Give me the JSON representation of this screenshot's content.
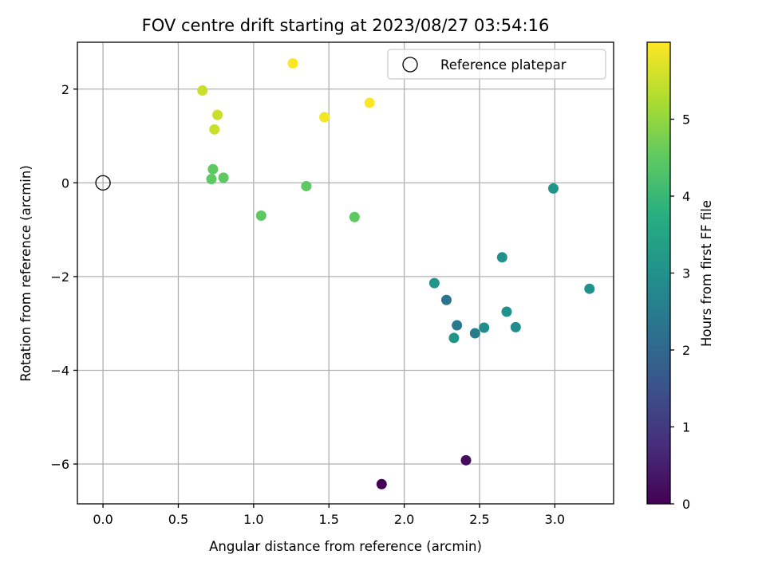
{
  "chart_data": {
    "type": "scatter",
    "title": "FOV centre drift starting at 2023/08/27 03:54:16",
    "xlabel": "Angular distance from reference (arcmin)",
    "ylabel": "Rotation from reference (arcmin)",
    "xlim": [
      -0.17,
      3.39
    ],
    "ylim": [
      -6.85,
      3.0
    ],
    "xticks": [
      0.0,
      0.5,
      1.0,
      1.5,
      2.0,
      2.5,
      3.0
    ],
    "xtick_labels": [
      "0.0",
      "0.5",
      "1.0",
      "1.5",
      "2.0",
      "2.5",
      "3.0"
    ],
    "yticks": [
      -6,
      -4,
      -2,
      0,
      2
    ],
    "ytick_labels": [
      "−6",
      "−4",
      "−2",
      "0",
      "2"
    ],
    "grid": true,
    "colormap": "viridis",
    "colorbar": {
      "label": "Hours from first FF file",
      "range": [
        0,
        6.0
      ],
      "ticks": [
        0,
        1,
        2,
        3,
        4,
        5
      ],
      "tick_labels": [
        "0",
        "1",
        "2",
        "3",
        "4",
        "5"
      ]
    },
    "legend": {
      "position": "top-right",
      "entries": [
        {
          "label": "Reference platepar",
          "marker": "open-circle",
          "x": 0.0,
          "y": 0.0
        }
      ]
    },
    "points": [
      {
        "x": 1.85,
        "y": -6.43,
        "hours": 0.0
      },
      {
        "x": 2.41,
        "y": -5.92,
        "hours": 0.2
      },
      {
        "x": 2.28,
        "y": -2.5,
        "hours": 2.3
      },
      {
        "x": 2.35,
        "y": -3.04,
        "hours": 2.4
      },
      {
        "x": 2.47,
        "y": -3.21,
        "hours": 2.5
      },
      {
        "x": 2.53,
        "y": -3.09,
        "hours": 2.9
      },
      {
        "x": 2.33,
        "y": -3.31,
        "hours": 3.1
      },
      {
        "x": 2.74,
        "y": -3.08,
        "hours": 2.9
      },
      {
        "x": 2.68,
        "y": -2.75,
        "hours": 3.0
      },
      {
        "x": 2.2,
        "y": -2.14,
        "hours": 3.1
      },
      {
        "x": 2.65,
        "y": -1.59,
        "hours": 3.0
      },
      {
        "x": 3.23,
        "y": -2.26,
        "hours": 3.0
      },
      {
        "x": 2.99,
        "y": -0.12,
        "hours": 3.1
      },
      {
        "x": 1.67,
        "y": -0.73,
        "hours": 4.5
      },
      {
        "x": 1.35,
        "y": -0.07,
        "hours": 4.5
      },
      {
        "x": 1.05,
        "y": -0.7,
        "hours": 4.5
      },
      {
        "x": 0.72,
        "y": 0.08,
        "hours": 4.5
      },
      {
        "x": 0.73,
        "y": 0.29,
        "hours": 4.5
      },
      {
        "x": 0.8,
        "y": 0.11,
        "hours": 4.5
      },
      {
        "x": 0.74,
        "y": 1.14,
        "hours": 5.5
      },
      {
        "x": 0.76,
        "y": 1.45,
        "hours": 5.5
      },
      {
        "x": 0.66,
        "y": 1.97,
        "hours": 5.5
      },
      {
        "x": 1.47,
        "y": 1.4,
        "hours": 5.9
      },
      {
        "x": 1.26,
        "y": 2.55,
        "hours": 6.0
      },
      {
        "x": 1.77,
        "y": 1.71,
        "hours": 6.0
      }
    ]
  }
}
